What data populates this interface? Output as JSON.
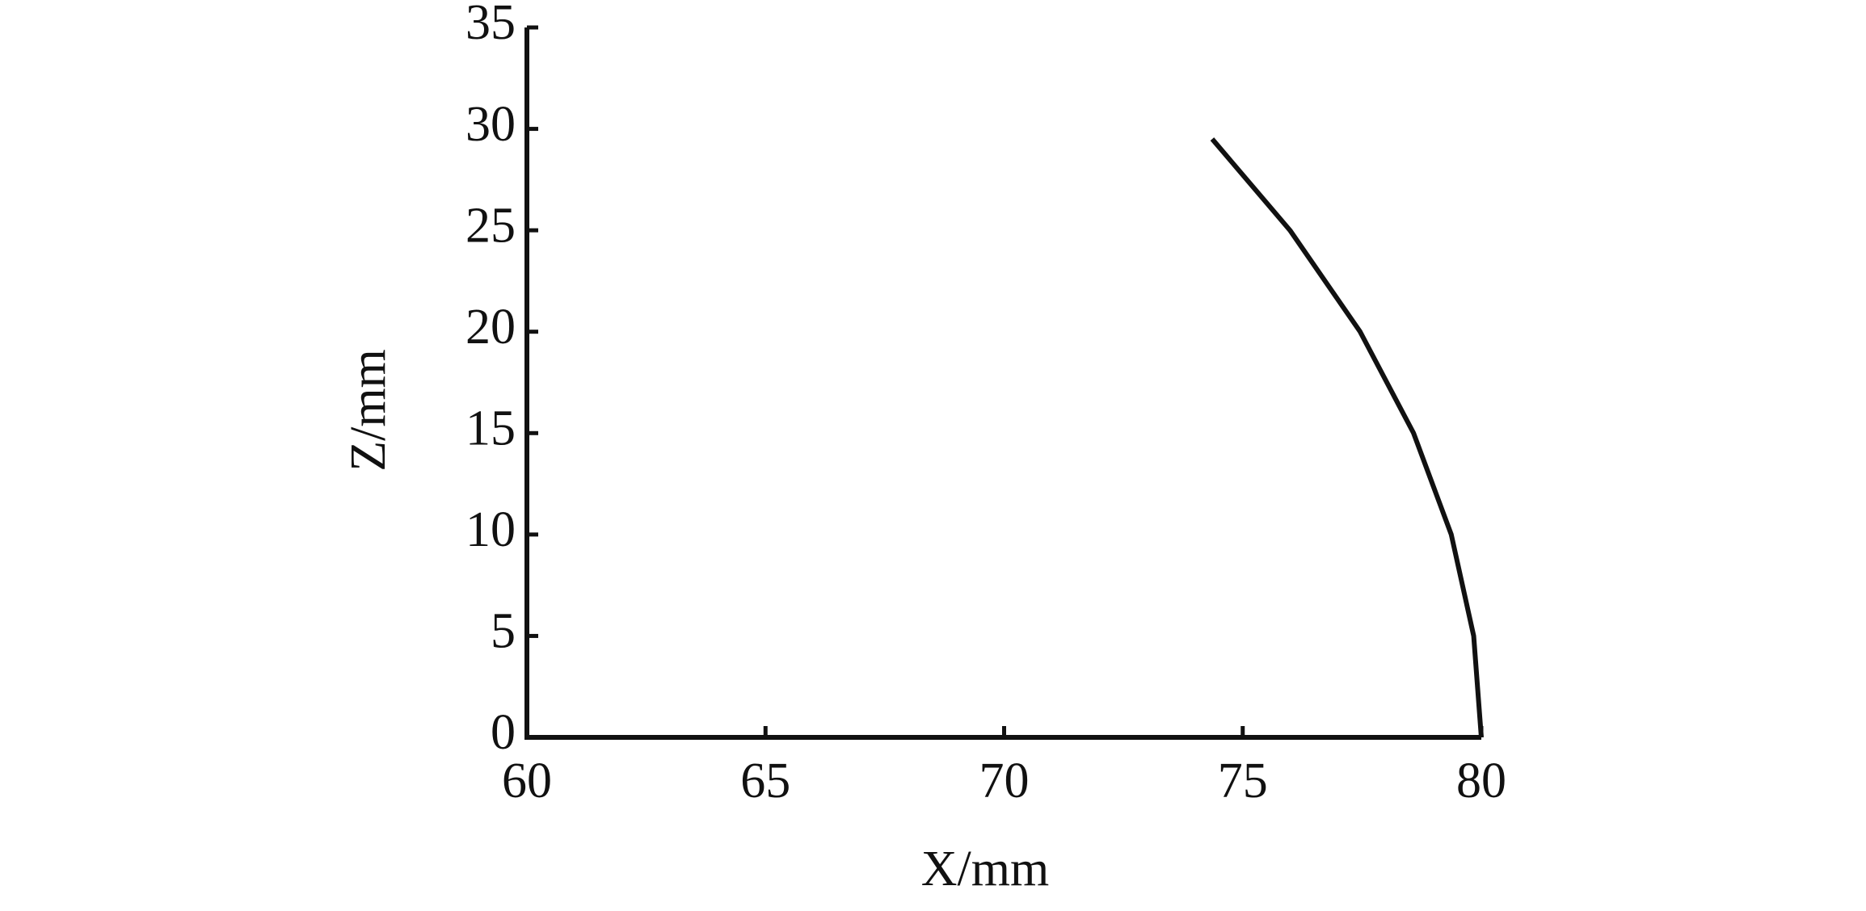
{
  "chart_data": {
    "type": "line",
    "x_label": "X/mm",
    "y_label": "Z/mm",
    "series": [
      {
        "color": "#111111",
        "x": [
          80,
          79.84,
          79.37,
          78.58,
          77.46,
          75.99,
          74.36
        ],
        "values": [
          0,
          5,
          10,
          15,
          20,
          25,
          29.5
        ]
      }
    ],
    "xlim": [
      60,
      80
    ],
    "xticks": [
      60,
      65,
      70,
      75,
      80
    ],
    "ylim": [
      0,
      35
    ],
    "yticks": [
      0,
      5,
      10,
      15,
      20,
      25,
      30,
      35
    ],
    "grid": false
  }
}
